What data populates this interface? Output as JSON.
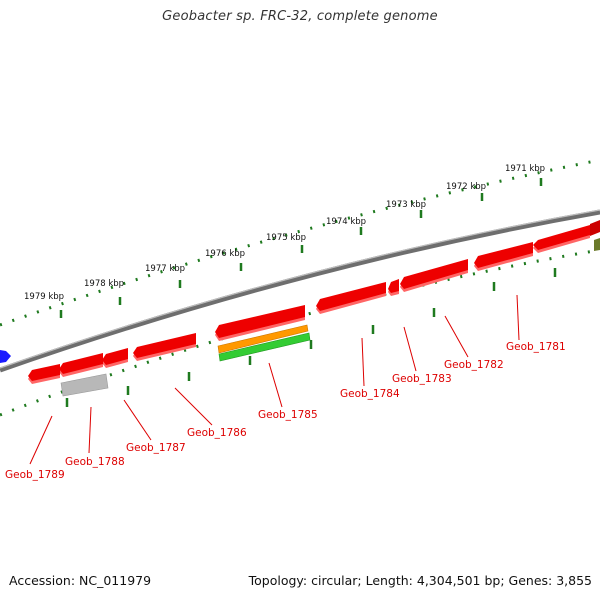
{
  "title": "Geobacter sp. FRC-32, complete genome",
  "footer": {
    "accession": "Accession: NC_011979",
    "topology": "Topology: circular; Length: 4,304,501 bp; Genes: 3,855"
  },
  "scale_labels": [
    "1971 kbp",
    "1972 kbp",
    "1973 kbp",
    "1974 kbp",
    "1975 kbp",
    "1976 kbp",
    "1977 kbp",
    "1978 kbp",
    "1979 kbp"
  ],
  "gene_labels": [
    "Geob_1781",
    "Geob_1782",
    "Geob_1783",
    "Geob_1784",
    "Geob_1785",
    "Geob_1786",
    "Geob_1787",
    "Geob_1788",
    "Geob_1789"
  ],
  "colors": {
    "gene": "#ee0000",
    "backbone": "#808080",
    "scale_dots": "#1f7a1f",
    "pseudo": "#b0b0b0",
    "orange_track": "#ff9900",
    "green_track": "#33cc33",
    "label": "#dd0000"
  }
}
